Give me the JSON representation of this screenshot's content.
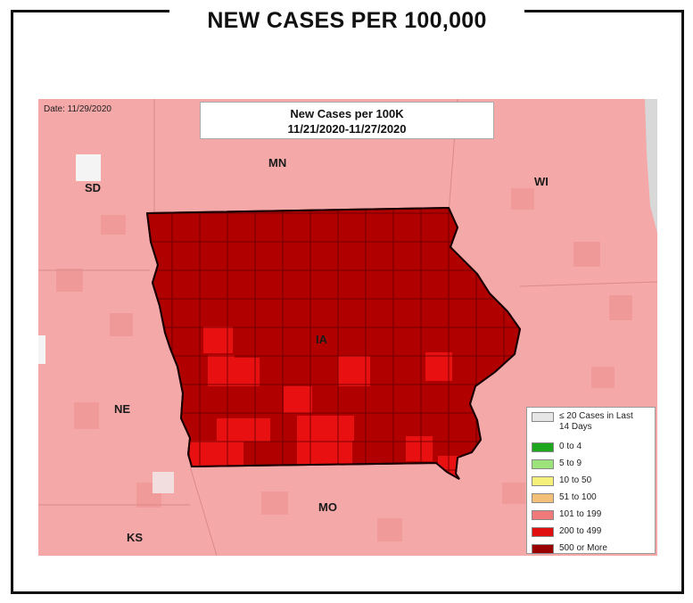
{
  "heading": "NEW CASES PER 100,000",
  "map": {
    "date_label": "Date: 11/29/2020",
    "title_line1": "New Cases per 100K",
    "title_line2": "11/21/2020-11/27/2020",
    "state_labels": {
      "mn": "MN",
      "sd": "SD",
      "wi": "WI",
      "ia": "IA",
      "ne": "NE",
      "mo": "MO",
      "ks": "KS"
    },
    "colors": {
      "background_surrounding": "#f4a3a3",
      "iowa_dominant": "#b00000",
      "highlight": "#e81010",
      "county_lines": "#5a0000"
    }
  },
  "legend": {
    "items": [
      {
        "label": "≤ 20 Cases in Last 14 Days",
        "color": "#e6e6e6"
      },
      {
        "label": "0 to 4",
        "color": "#1fa61f"
      },
      {
        "label": "5 to 9",
        "color": "#9be37a"
      },
      {
        "label": "10 to 50",
        "color": "#f5f07a"
      },
      {
        "label": "51 to 100",
        "color": "#f3c07a"
      },
      {
        "label": "101 to 199",
        "color": "#f07a7a"
      },
      {
        "label": "200 to 499",
        "color": "#e01010"
      },
      {
        "label": "500 or More",
        "color": "#990000"
      }
    ]
  }
}
